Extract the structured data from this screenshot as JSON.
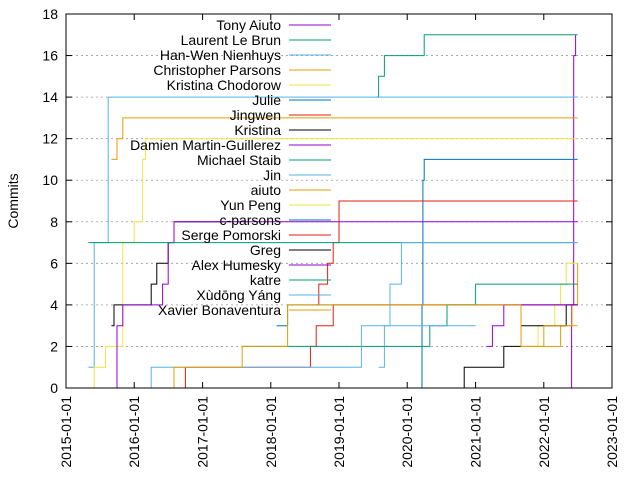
{
  "chart_data": {
    "type": "line",
    "ylabel": "Commits",
    "ylim": [
      0,
      18
    ],
    "xlim": [
      "2015-01-01",
      "2023-01-01"
    ],
    "y_ticks": [
      "0",
      "2",
      "4",
      "6",
      "8",
      "10",
      "12",
      "14",
      "16",
      "18"
    ],
    "x_ticks": [
      "2015-01-01",
      "2016-01-01",
      "2017-01-01",
      "2018-01-01",
      "2019-01-01",
      "2020-01-01",
      "2021-01-01",
      "2022-01-01",
      "2023-01-01"
    ],
    "grid": "y-major-dashed",
    "legend_placement": "top-left",
    "step": true,
    "series": [
      {
        "name": "Tony Aiuto",
        "color": "#9400d3",
        "points": [
          [
            "2022-05-20",
            0
          ],
          [
            "2022-05-30",
            4
          ],
          [
            "2022-06-10",
            16
          ],
          [
            "2022-06-20",
            17
          ]
        ]
      },
      {
        "name": "Laurent Le Brun",
        "color": "#009e73",
        "points": [
          [
            "2019-07-20",
            14
          ],
          [
            "2019-08-01",
            15
          ],
          [
            "2019-09-01",
            16
          ],
          [
            "2020-04-01",
            17
          ],
          [
            "2022-07-01",
            17
          ]
        ]
      },
      {
        "name": "Han-Wen Nienhuys",
        "color": "#56b4e9",
        "points": [
          [
            "2015-05-01",
            1
          ],
          [
            "2015-06-01",
            7
          ],
          [
            "2015-08-15",
            14
          ],
          [
            "2022-07-01",
            14
          ]
        ]
      },
      {
        "name": "Christopher Parsons",
        "color": "#e69f00",
        "points": [
          [
            "2015-09-01",
            11
          ],
          [
            "2015-10-01",
            12
          ],
          [
            "2015-11-01",
            13
          ],
          [
            "2022-07-01",
            13
          ]
        ]
      },
      {
        "name": "Kristina Chodorow",
        "color": "#f0e442",
        "points": [
          [
            "2015-04-01",
            0
          ],
          [
            "2015-06-01",
            1
          ],
          [
            "2015-08-01",
            2
          ],
          [
            "2015-11-01",
            7
          ],
          [
            "2016-01-01",
            8
          ],
          [
            "2016-02-15",
            11
          ],
          [
            "2016-03-01",
            12
          ],
          [
            "2022-07-01",
            12
          ]
        ]
      },
      {
        "name": "Julie",
        "color": "#0072b2",
        "points": [
          [
            "2020-03-10",
            0
          ],
          [
            "2020-03-20",
            4
          ],
          [
            "2020-03-25",
            10
          ],
          [
            "2020-04-01",
            11
          ],
          [
            "2022-07-01",
            11
          ]
        ]
      },
      {
        "name": "Jingwen",
        "color": "#e51e10",
        "points": [
          [
            "2018-09-01",
            4
          ],
          [
            "2018-09-15",
            5
          ],
          [
            "2018-11-01",
            6
          ],
          [
            "2018-12-01",
            7
          ],
          [
            "2019-01-01",
            9
          ],
          [
            "2022-07-01",
            9
          ]
        ]
      },
      {
        "name": "Kristina",
        "color": "#000000",
        "points": [
          [
            "2015-09-01",
            3
          ],
          [
            "2015-09-15",
            4
          ],
          [
            "2016-04-01",
            5
          ],
          [
            "2016-05-01",
            6
          ],
          [
            "2016-07-01",
            7
          ],
          [
            "2016-08-01",
            8
          ],
          [
            "2017-06-01",
            8
          ]
        ]
      },
      {
        "name": "Damien Martin-Guillerez",
        "color": "#9400d3",
        "points": [
          [
            "2015-09-01",
            0
          ],
          [
            "2015-10-01",
            3
          ],
          [
            "2015-11-01",
            4
          ],
          [
            "2016-06-01",
            5
          ],
          [
            "2016-07-01",
            7
          ],
          [
            "2016-08-01",
            8
          ],
          [
            "2022-07-01",
            8
          ]
        ]
      },
      {
        "name": "Michael Staib",
        "color": "#009e73",
        "points": [
          [
            "2015-05-01",
            7
          ],
          [
            "2022-07-01",
            7
          ]
        ]
      },
      {
        "name": "Jin",
        "color": "#56b4e9",
        "points": [
          [
            "2019-08-01",
            1
          ],
          [
            "2019-09-01",
            3
          ],
          [
            "2019-10-01",
            5
          ],
          [
            "2019-12-01",
            7
          ],
          [
            "2022-07-01",
            7
          ]
        ]
      },
      {
        "name": "aiuto",
        "color": "#e69f00",
        "points": [
          [
            "2021-10-01",
            2
          ],
          [
            "2022-04-01",
            3
          ],
          [
            "2022-06-01",
            4
          ],
          [
            "2022-07-01",
            6
          ]
        ]
      },
      {
        "name": "Yun Peng",
        "color": "#f0e442",
        "points": [
          [
            "2021-08-01",
            2
          ],
          [
            "2021-12-01",
            3
          ],
          [
            "2022-03-01",
            4
          ],
          [
            "2022-04-01",
            5
          ],
          [
            "2022-05-01",
            6
          ],
          [
            "2022-07-01",
            6
          ]
        ]
      },
      {
        "name": "c-parsons",
        "color": "#0072b2",
        "points": [
          [
            "2018-02-01",
            3
          ],
          [
            "2018-04-01",
            4
          ],
          [
            "2022-07-01",
            4
          ]
        ]
      },
      {
        "name": "Serge Pomorski",
        "color": "#e51e10",
        "points": [
          [
            "2016-08-01",
            0
          ],
          [
            "2016-10-01",
            1
          ],
          [
            "2018-08-01",
            2
          ],
          [
            "2018-09-01",
            3
          ],
          [
            "2018-12-01",
            4
          ],
          [
            "2022-07-01",
            4
          ]
        ]
      },
      {
        "name": "Greg",
        "color": "#000000",
        "points": [
          [
            "2020-09-01",
            0
          ],
          [
            "2020-11-01",
            1
          ],
          [
            "2021-06-01",
            2
          ],
          [
            "2021-09-01",
            3
          ],
          [
            "2022-04-01",
            3
          ],
          [
            "2022-05-01",
            4
          ],
          [
            "2022-07-01",
            4
          ]
        ]
      },
      {
        "name": "Alex Humesky",
        "color": "#9400d3",
        "points": [
          [
            "2021-03-01",
            2
          ],
          [
            "2021-04-01",
            3
          ],
          [
            "2021-06-01",
            4
          ],
          [
            "2022-07-01",
            4
          ]
        ]
      },
      {
        "name": "katre",
        "color": "#009e73",
        "points": [
          [
            "2017-08-01",
            2
          ],
          [
            "2020-03-01",
            2
          ],
          [
            "2020-05-01",
            3
          ],
          [
            "2020-08-01",
            4
          ],
          [
            "2021-01-01",
            5
          ],
          [
            "2022-07-01",
            5
          ]
        ]
      },
      {
        "name": "Xùdōng Yáng",
        "color": "#56b4e9",
        "points": [
          [
            "2016-03-01",
            0
          ],
          [
            "2016-04-01",
            1
          ],
          [
            "2019-05-01",
            3
          ],
          [
            "2021-01-01",
            3
          ]
        ]
      },
      {
        "name": "Xavier Bonaventura",
        "color": "#e69f00",
        "points": [
          [
            "2016-06-01",
            0
          ],
          [
            "2016-08-01",
            1
          ],
          [
            "2017-08-01",
            2
          ],
          [
            "2018-04-01",
            4
          ],
          [
            "2019-01-01",
            4
          ],
          [
            "2021-09-01",
            2
          ],
          [
            "2022-01-01",
            3
          ],
          [
            "2022-07-01",
            3
          ]
        ]
      }
    ]
  }
}
